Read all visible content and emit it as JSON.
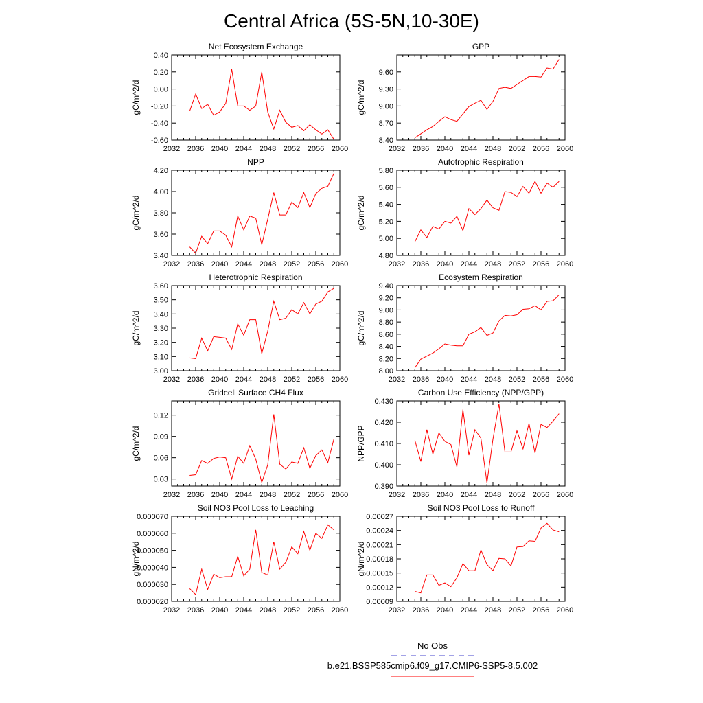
{
  "figure": {
    "title": "Central Africa (5S-5N,10-30E)",
    "legend": {
      "obs_label": "No Obs",
      "obs_color": "#4444cc",
      "model_label": "b.e21.BSSP585cmip6.f09_g17.CMIP6-SSP5-8.5.002",
      "model_color": "#ff0000"
    }
  },
  "chart_data": [
    {
      "type": "line",
      "title": "Net Ecosystem Exchange",
      "ylabel": "gC/m^2/d",
      "xlim": [
        2032,
        2060
      ],
      "ylim": [
        -0.6,
        0.4
      ],
      "xticks": [
        "2032",
        "2036",
        "2040",
        "2044",
        "2048",
        "2052",
        "2056",
        "2060"
      ],
      "yticks": [
        "-0.60",
        "-0.40",
        "-0.20",
        "0.00",
        "0.20",
        "0.40"
      ],
      "ytick_values": [
        -0.6,
        -0.4,
        -0.2,
        0.0,
        0.2,
        0.4
      ],
      "x": [
        2035,
        2036,
        2037,
        2038,
        2039,
        2040,
        2041,
        2042,
        2043,
        2044,
        2045,
        2046,
        2047,
        2048,
        2049,
        2050,
        2051,
        2052,
        2053,
        2054,
        2055,
        2056,
        2057,
        2058,
        2059
      ],
      "series": [
        {
          "color": "#ff0000",
          "values": [
            -0.26,
            -0.06,
            -0.23,
            -0.18,
            -0.31,
            -0.27,
            -0.17,
            0.23,
            -0.2,
            -0.2,
            -0.25,
            -0.2,
            0.2,
            -0.27,
            -0.47,
            -0.25,
            -0.39,
            -0.45,
            -0.43,
            -0.49,
            -0.42,
            -0.48,
            -0.53,
            -0.48,
            -0.59
          ]
        }
      ]
    },
    {
      "type": "line",
      "title": "GPP",
      "ylabel": "gC/m^2/d",
      "xlim": [
        2032,
        2060
      ],
      "ylim": [
        8.4,
        9.9
      ],
      "xticks": [
        "2032",
        "2036",
        "2040",
        "2044",
        "2048",
        "2052",
        "2056",
        "2060"
      ],
      "yticks": [
        "8.40",
        "8.70",
        "9.00",
        "9.30",
        "9.60"
      ],
      "ytick_values": [
        8.4,
        8.7,
        9.0,
        9.3,
        9.6
      ],
      "x": [
        2035,
        2036,
        2037,
        2038,
        2039,
        2040,
        2041,
        2042,
        2043,
        2044,
        2045,
        2046,
        2047,
        2048,
        2049,
        2050,
        2051,
        2052,
        2053,
        2054,
        2055,
        2056,
        2057,
        2058,
        2059
      ],
      "series": [
        {
          "color": "#ff0000",
          "values": [
            8.44,
            8.51,
            8.58,
            8.64,
            8.73,
            8.81,
            8.76,
            8.73,
            8.86,
            8.99,
            9.05,
            9.1,
            8.94,
            9.08,
            9.31,
            9.33,
            9.31,
            9.38,
            9.45,
            9.52,
            9.52,
            9.51,
            9.67,
            9.65,
            9.82
          ]
        }
      ]
    },
    {
      "type": "line",
      "title": "NPP",
      "ylabel": "gC/m^2/d",
      "xlim": [
        2032,
        2060
      ],
      "ylim": [
        3.4,
        4.2
      ],
      "xticks": [
        "2032",
        "2036",
        "2040",
        "2044",
        "2048",
        "2052",
        "2056",
        "2060"
      ],
      "yticks": [
        "3.40",
        "3.60",
        "3.80",
        "4.00",
        "4.20"
      ],
      "ytick_values": [
        3.4,
        3.6,
        3.8,
        4.0,
        4.2
      ],
      "x": [
        2035,
        2036,
        2037,
        2038,
        2039,
        2040,
        2041,
        2042,
        2043,
        2044,
        2045,
        2046,
        2047,
        2048,
        2049,
        2050,
        2051,
        2052,
        2053,
        2054,
        2055,
        2056,
        2057,
        2058,
        2059
      ],
      "series": [
        {
          "color": "#ff0000",
          "values": [
            3.48,
            3.42,
            3.58,
            3.51,
            3.63,
            3.63,
            3.59,
            3.48,
            3.77,
            3.64,
            3.77,
            3.75,
            3.5,
            3.74,
            3.99,
            3.78,
            3.78,
            3.9,
            3.85,
            3.99,
            3.85,
            3.98,
            4.03,
            4.05,
            4.17
          ]
        }
      ]
    },
    {
      "type": "line",
      "title": "Autotrophic Respiration",
      "ylabel": "gC/m^2/d",
      "xlim": [
        2032,
        2060
      ],
      "ylim": [
        4.8,
        5.8
      ],
      "xticks": [
        "2032",
        "2036",
        "2040",
        "2044",
        "2048",
        "2052",
        "2056",
        "2060"
      ],
      "yticks": [
        "4.80",
        "5.00",
        "5.20",
        "5.40",
        "5.60",
        "5.80"
      ],
      "ytick_values": [
        4.8,
        5.0,
        5.2,
        5.4,
        5.6,
        5.8
      ],
      "x": [
        2035,
        2036,
        2037,
        2038,
        2039,
        2040,
        2041,
        2042,
        2043,
        2044,
        2045,
        2046,
        2047,
        2048,
        2049,
        2050,
        2051,
        2052,
        2053,
        2054,
        2055,
        2056,
        2057,
        2058,
        2059
      ],
      "series": [
        {
          "color": "#ff0000",
          "values": [
            4.96,
            5.1,
            5.01,
            5.14,
            5.11,
            5.2,
            5.18,
            5.26,
            5.09,
            5.35,
            5.28,
            5.35,
            5.45,
            5.36,
            5.33,
            5.55,
            5.54,
            5.49,
            5.61,
            5.53,
            5.67,
            5.53,
            5.65,
            5.6,
            5.67
          ]
        }
      ]
    },
    {
      "type": "line",
      "title": "Heterotrophic Respiration",
      "ylabel": "gC/m^2/d",
      "xlim": [
        2032,
        2060
      ],
      "ylim": [
        3.0,
        3.6
      ],
      "xticks": [
        "2032",
        "2036",
        "2040",
        "2044",
        "2048",
        "2052",
        "2056",
        "2060"
      ],
      "yticks": [
        "3.00",
        "3.10",
        "3.20",
        "3.30",
        "3.40",
        "3.50",
        "3.60"
      ],
      "ytick_values": [
        3.0,
        3.1,
        3.2,
        3.3,
        3.4,
        3.5,
        3.6
      ],
      "x": [
        2035,
        2036,
        2037,
        2038,
        2039,
        2040,
        2041,
        2042,
        2043,
        2044,
        2045,
        2046,
        2047,
        2048,
        2049,
        2050,
        2051,
        2052,
        2053,
        2054,
        2055,
        2056,
        2057,
        2058,
        2059
      ],
      "series": [
        {
          "color": "#ff0000",
          "values": [
            3.09,
            3.085,
            3.23,
            3.14,
            3.24,
            3.235,
            3.23,
            3.15,
            3.33,
            3.25,
            3.36,
            3.36,
            3.12,
            3.28,
            3.49,
            3.36,
            3.37,
            3.43,
            3.4,
            3.48,
            3.4,
            3.47,
            3.49,
            3.555,
            3.58
          ]
        }
      ]
    },
    {
      "type": "line",
      "title": "Ecosystem Respiration",
      "ylabel": "gC/m^2/d",
      "xlim": [
        2032,
        2060
      ],
      "ylim": [
        8.0,
        9.4
      ],
      "xticks": [
        "2032",
        "2036",
        "2040",
        "2044",
        "2048",
        "2052",
        "2056",
        "2060"
      ],
      "yticks": [
        "8.00",
        "8.20",
        "8.40",
        "8.60",
        "8.80",
        "9.00",
        "9.20",
        "9.40"
      ],
      "ytick_values": [
        8.0,
        8.2,
        8.4,
        8.6,
        8.8,
        9.0,
        9.2,
        9.4
      ],
      "x": [
        2035,
        2036,
        2037,
        2038,
        2039,
        2040,
        2041,
        2042,
        2043,
        2044,
        2045,
        2046,
        2047,
        2048,
        2049,
        2050,
        2051,
        2052,
        2053,
        2054,
        2055,
        2056,
        2057,
        2058,
        2059
      ],
      "series": [
        {
          "color": "#ff0000",
          "values": [
            8.05,
            8.19,
            8.24,
            8.29,
            8.36,
            8.44,
            8.42,
            8.41,
            8.41,
            8.6,
            8.64,
            8.71,
            8.58,
            8.62,
            8.82,
            8.91,
            8.9,
            8.92,
            9.01,
            9.02,
            9.07,
            9.0,
            9.14,
            9.15,
            9.25
          ]
        }
      ]
    },
    {
      "type": "line",
      "title": "Gridcell Surface CH4 Flux",
      "ylabel": "gC/m^2/d",
      "xlim": [
        2032,
        2060
      ],
      "ylim": [
        0.02,
        0.14
      ],
      "xticks": [
        "2032",
        "2036",
        "2040",
        "2044",
        "2048",
        "2052",
        "2056",
        "2060"
      ],
      "yticks": [
        "0.03",
        "0.06",
        "0.09",
        "0.12"
      ],
      "ytick_values": [
        0.03,
        0.06,
        0.09,
        0.12
      ],
      "x": [
        2035,
        2036,
        2037,
        2038,
        2039,
        2040,
        2041,
        2042,
        2043,
        2044,
        2045,
        2046,
        2047,
        2048,
        2049,
        2050,
        2051,
        2052,
        2053,
        2054,
        2055,
        2056,
        2057,
        2058,
        2059
      ],
      "series": [
        {
          "color": "#ff0000",
          "values": [
            0.035,
            0.036,
            0.056,
            0.052,
            0.059,
            0.061,
            0.06,
            0.03,
            0.062,
            0.052,
            0.077,
            0.058,
            0.025,
            0.05,
            0.121,
            0.051,
            0.044,
            0.054,
            0.052,
            0.074,
            0.045,
            0.063,
            0.071,
            0.053,
            0.086
          ]
        }
      ]
    },
    {
      "type": "line",
      "title": "Carbon Use Efficiency (NPP/GPP)",
      "ylabel": "NPP/GPP",
      "xlim": [
        2032,
        2060
      ],
      "ylim": [
        0.39,
        0.43
      ],
      "xticks": [
        "2032",
        "2036",
        "2040",
        "2044",
        "2048",
        "2052",
        "2056",
        "2060"
      ],
      "yticks": [
        "0.390",
        "0.400",
        "0.410",
        "0.420",
        "0.430"
      ],
      "ytick_values": [
        0.39,
        0.4,
        0.41,
        0.42,
        0.43
      ],
      "x": [
        2035,
        2036,
        2037,
        2038,
        2039,
        2040,
        2041,
        2042,
        2043,
        2044,
        2045,
        2046,
        2047,
        2048,
        2049,
        2050,
        2051,
        2052,
        2053,
        2054,
        2055,
        2056,
        2057,
        2058,
        2059
      ],
      "series": [
        {
          "color": "#ff0000",
          "values": [
            0.4115,
            0.4015,
            0.4165,
            0.405,
            0.415,
            0.411,
            0.4095,
            0.399,
            0.426,
            0.4045,
            0.4165,
            0.4125,
            0.3915,
            0.412,
            0.4285,
            0.406,
            0.406,
            0.416,
            0.4075,
            0.4195,
            0.4055,
            0.419,
            0.4175,
            0.4205,
            0.424
          ]
        }
      ]
    },
    {
      "type": "line",
      "title": "Soil NO3 Pool Loss to Leaching",
      "ylabel": "gN/m^2/d",
      "xlim": [
        2032,
        2060
      ],
      "ylim": [
        2e-05,
        7e-05
      ],
      "xticks": [
        "2032",
        "2036",
        "2040",
        "2044",
        "2048",
        "2052",
        "2056",
        "2060"
      ],
      "yticks": [
        "0.000020",
        "0.000030",
        "0.000040",
        "0.000050",
        "0.000060",
        "0.000070"
      ],
      "ytick_values": [
        2e-05,
        3e-05,
        4e-05,
        5e-05,
        6e-05,
        7e-05
      ],
      "x": [
        2035,
        2036,
        2037,
        2038,
        2039,
        2040,
        2041,
        2042,
        2043,
        2044,
        2045,
        2046,
        2047,
        2048,
        2049,
        2050,
        2051,
        2052,
        2053,
        2054,
        2055,
        2056,
        2057,
        2058,
        2059
      ],
      "series": [
        {
          "color": "#ff0000",
          "values": [
            2.75e-05,
            2.4e-05,
            3.9e-05,
            2.7e-05,
            3.6e-05,
            3.4e-05,
            3.45e-05,
            3.45e-05,
            4.65e-05,
            3.5e-05,
            3.9e-05,
            6.2e-05,
            3.7e-05,
            3.55e-05,
            5.5e-05,
            3.9e-05,
            4.3e-05,
            5.2e-05,
            4.8e-05,
            6.1e-05,
            5e-05,
            6e-05,
            5.7e-05,
            6.5e-05,
            6.2e-05
          ]
        }
      ]
    },
    {
      "type": "line",
      "title": "Soil NO3 Pool Loss to Runoff",
      "ylabel": "gN/m^2/d",
      "xlim": [
        2032,
        2060
      ],
      "ylim": [
        9e-05,
        0.00027
      ],
      "xticks": [
        "2032",
        "2036",
        "2040",
        "2044",
        "2048",
        "2052",
        "2056",
        "2060"
      ],
      "yticks": [
        "0.00009",
        "0.00012",
        "0.00015",
        "0.00018",
        "0.00021",
        "0.00024",
        "0.00027"
      ],
      "ytick_values": [
        9e-05,
        0.00012,
        0.00015,
        0.00018,
        0.00021,
        0.00024,
        0.00027
      ],
      "x": [
        2035,
        2036,
        2037,
        2038,
        2039,
        2040,
        2041,
        2042,
        2043,
        2044,
        2045,
        2046,
        2047,
        2048,
        2049,
        2050,
        2051,
        2052,
        2053,
        2054,
        2055,
        2056,
        2057,
        2058,
        2059
      ],
      "series": [
        {
          "color": "#ff0000",
          "values": [
            0.000111,
            0.000108,
            0.000146,
            0.000146,
            0.000124,
            0.000129,
            0.000121,
            0.00014,
            0.00017,
            0.000155,
            0.000155,
            0.000199,
            0.000168,
            0.000155,
            0.000181,
            0.00018,
            0.000165,
            0.000205,
            0.000206,
            0.000218,
            0.000217,
            0.000245,
            0.000255,
            0.000241,
            0.000237
          ]
        }
      ]
    }
  ]
}
